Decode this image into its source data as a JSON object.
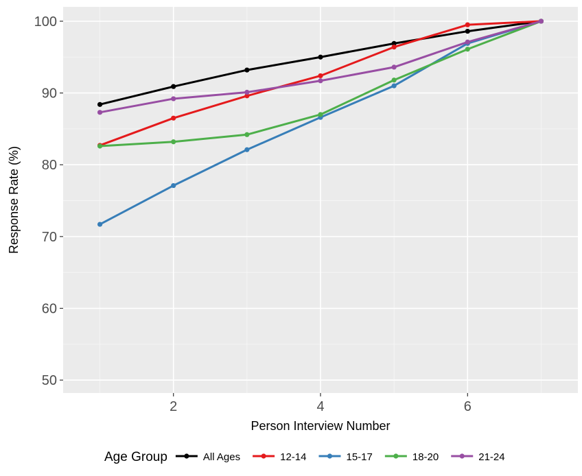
{
  "chart_data": {
    "type": "line",
    "title": "",
    "xlabel": "Person Interview Number",
    "ylabel": "Response Rate (%)",
    "xlim": [
      0.5,
      7.5
    ],
    "ylim": [
      48.2,
      102
    ],
    "x_ticks": [
      2,
      4,
      6
    ],
    "y_ticks": [
      50,
      60,
      70,
      80,
      90,
      100
    ],
    "x": [
      1,
      2,
      3,
      4,
      5,
      6,
      7
    ],
    "grid": true,
    "legend": {
      "title": "Age Group",
      "position": "bottom"
    },
    "series": [
      {
        "name": "All Ages",
        "color": "#000000",
        "values": [
          88.4,
          90.9,
          93.2,
          95.0,
          96.9,
          98.6,
          100
        ]
      },
      {
        "name": "12-14",
        "color": "#e41a1c",
        "values": [
          82.7,
          86.5,
          89.6,
          92.4,
          96.4,
          99.5,
          100
        ]
      },
      {
        "name": "15-17",
        "color": "#377eb8",
        "values": [
          71.7,
          77.1,
          82.1,
          86.6,
          91.0,
          96.9,
          100
        ]
      },
      {
        "name": "18-20",
        "color": "#4daf4a",
        "values": [
          82.6,
          83.2,
          84.2,
          87.0,
          91.8,
          96.1,
          100
        ]
      },
      {
        "name": "21-24",
        "color": "#984ea3",
        "values": [
          87.3,
          89.2,
          90.1,
          91.7,
          93.6,
          97.1,
          100
        ]
      }
    ]
  }
}
